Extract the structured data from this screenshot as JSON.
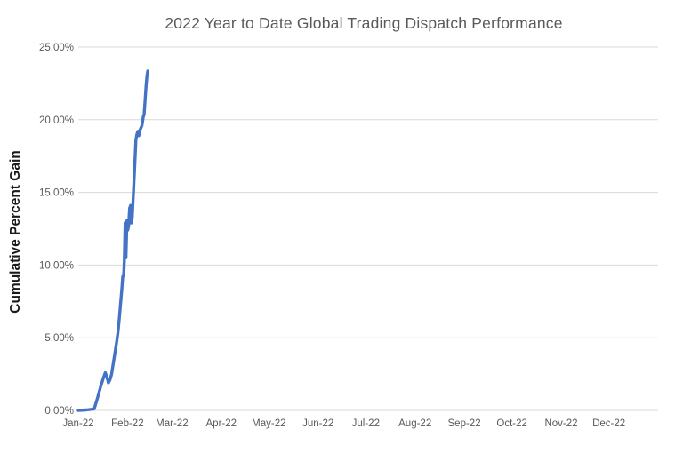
{
  "chart_data": {
    "type": "line",
    "title": "2022 Year to Date Global Trading Dispatch Performance",
    "xlabel": "",
    "ylabel": "Cumulative Percent Gain",
    "legend": false,
    "grid": true,
    "x_axis": {
      "unit": "day-of-year-2022",
      "range": [
        1,
        366
      ],
      "ticks": [
        {
          "label": "Jan-22",
          "day": 1
        },
        {
          "label": "Feb-22",
          "day": 32
        },
        {
          "label": "Mar-22",
          "day": 60
        },
        {
          "label": "Apr-22",
          "day": 91
        },
        {
          "label": "May-22",
          "day": 121
        },
        {
          "label": "Jun-22",
          "day": 152
        },
        {
          "label": "Jul-22",
          "day": 182
        },
        {
          "label": "Aug-22",
          "day": 213
        },
        {
          "label": "Sep-22",
          "day": 244
        },
        {
          "label": "Oct-22",
          "day": 274
        },
        {
          "label": "Nov-22",
          "day": 305
        },
        {
          "label": "Dec-22",
          "day": 335
        }
      ]
    },
    "y_axis": {
      "unit": "percent",
      "range": [
        0,
        25
      ],
      "ticks": [
        {
          "label": "0.00%",
          "value": 0
        },
        {
          "label": "5.00%",
          "value": 5
        },
        {
          "label": "10.00%",
          "value": 10
        },
        {
          "label": "15.00%",
          "value": 15
        },
        {
          "label": "20.00%",
          "value": 20
        },
        {
          "label": "25.00%",
          "value": 25
        }
      ]
    },
    "series": [
      {
        "name": "Cumulative Percent Gain",
        "color": "#4472C4",
        "stroke_width": 3.4,
        "points": [
          [
            1,
            0.0
          ],
          [
            6,
            0.03
          ],
          [
            11,
            0.1
          ],
          [
            13,
            0.8
          ],
          [
            15,
            1.6
          ],
          [
            17,
            2.3
          ],
          [
            18,
            2.6
          ],
          [
            19,
            2.3
          ],
          [
            20,
            1.9
          ],
          [
            21,
            2.1
          ],
          [
            22,
            2.5
          ],
          [
            23,
            3.2
          ],
          [
            24,
            3.9
          ],
          [
            25,
            4.6
          ],
          [
            26,
            5.4
          ],
          [
            26.8,
            6.3
          ],
          [
            27.6,
            7.3
          ],
          [
            28.3,
            8.2
          ],
          [
            29,
            9.2
          ],
          [
            29.6,
            9.3
          ],
          [
            30,
            10.3
          ],
          [
            30.5,
            12.9
          ],
          [
            31,
            10.5
          ],
          [
            31.6,
            13.05
          ],
          [
            32.1,
            12.4
          ],
          [
            32.7,
            12.7
          ],
          [
            33.3,
            13.9
          ],
          [
            33.9,
            14.1
          ],
          [
            34.4,
            12.9
          ],
          [
            35,
            13.3
          ],
          [
            35.8,
            15.2
          ],
          [
            36.6,
            17.0
          ],
          [
            37.3,
            18.6
          ],
          [
            37.9,
            19.0
          ],
          [
            38.5,
            19.2
          ],
          [
            39.1,
            18.9
          ],
          [
            39.7,
            19.25
          ],
          [
            40.3,
            19.4
          ],
          [
            41.1,
            19.6
          ],
          [
            41.9,
            20.2
          ],
          [
            42.4,
            20.35
          ],
          [
            43,
            21.2
          ],
          [
            43.6,
            22.2
          ],
          [
            44.2,
            23.0
          ],
          [
            44.7,
            23.35
          ]
        ]
      }
    ],
    "final_value": "23.35%",
    "colors": {
      "background": "#FFFFFF",
      "grid": "#D9D9D9",
      "title_text": "#595959",
      "tick_text": "#595959",
      "axis_title_text": "#1A1A1A",
      "series": "#4472C4"
    }
  }
}
